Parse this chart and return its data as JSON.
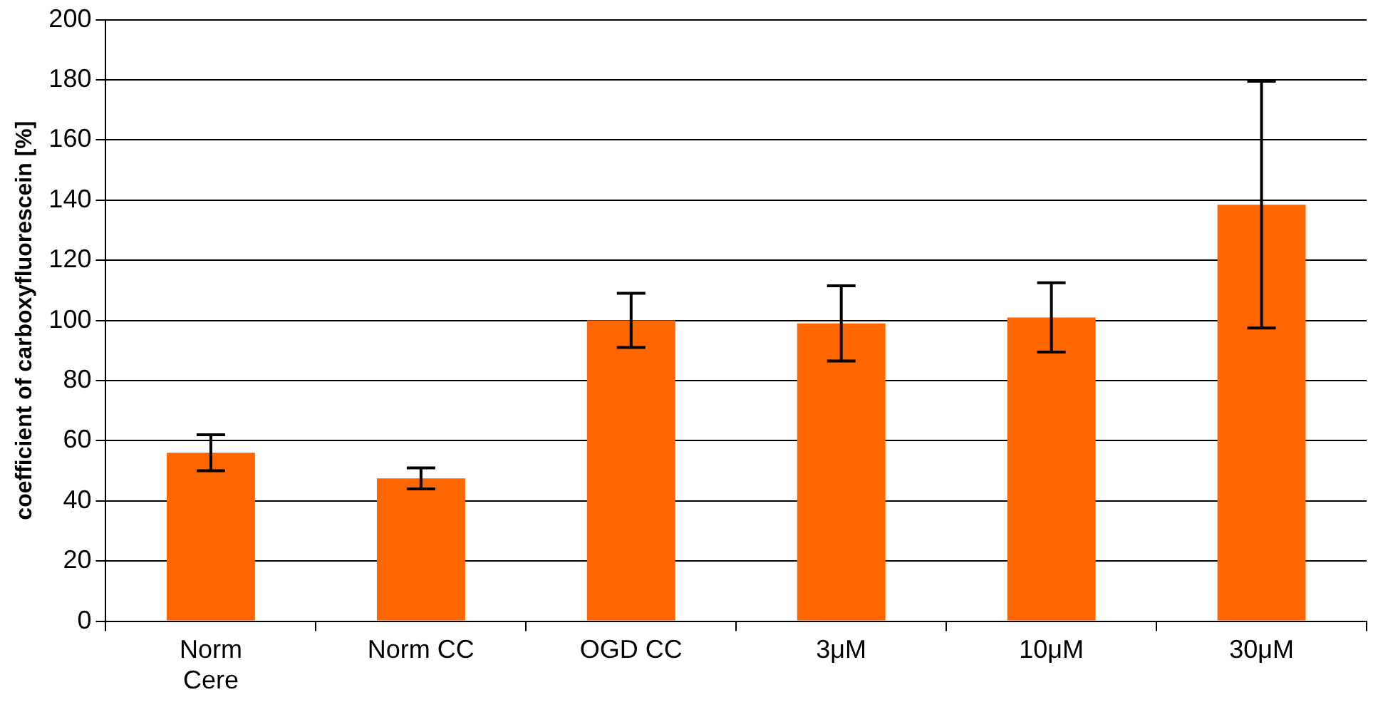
{
  "chart_data": {
    "type": "bar",
    "ylabel": "coefficient of carboxyfluorescein [%]",
    "categories": [
      "Norm Cere",
      "Norm CC",
      "OGD CC",
      "3μM",
      "10μM",
      "30μM"
    ],
    "values": [
      56,
      47.5,
      100,
      99,
      101,
      138.5
    ],
    "errors": [
      6,
      3.5,
      9,
      12.5,
      11.5,
      41
    ],
    "color": "#ff6600",
    "ylim": [
      0,
      200
    ],
    "yticks": [
      0,
      20,
      40,
      60,
      80,
      100,
      120,
      140,
      160,
      180,
      200
    ],
    "grid": "y",
    "legend": false
  }
}
